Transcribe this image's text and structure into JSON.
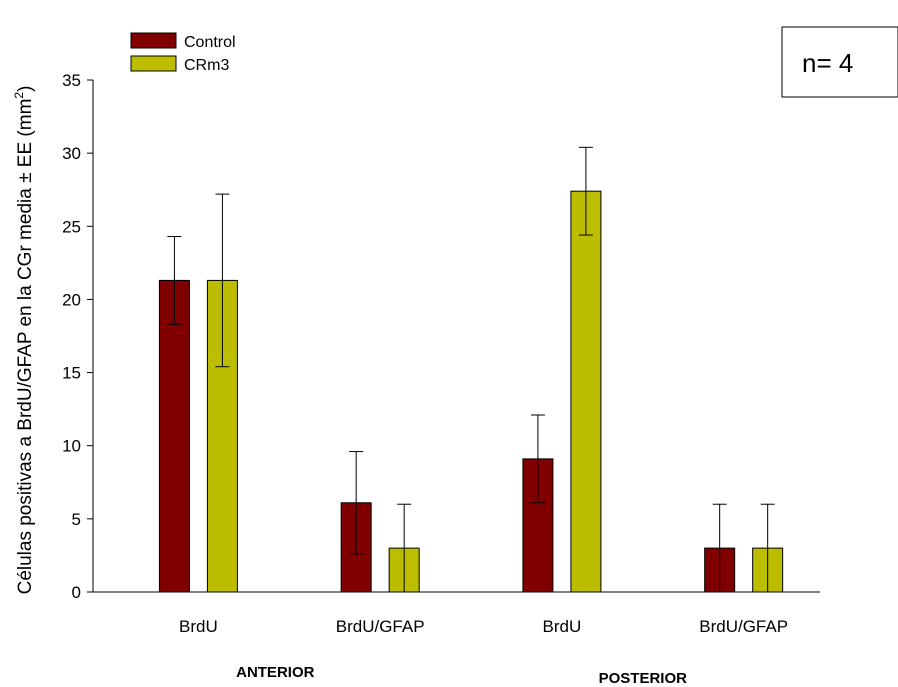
{
  "chart_data": {
    "type": "bar",
    "title": "",
    "xlabel": "",
    "ylabel": "Células positivas a BrdU/GFAP en la CGr media ± EE (mm",
    "ylabel_sup": "2",
    "ylabel_close": ")",
    "ylim": [
      0,
      35
    ],
    "yticks": [
      0,
      5,
      10,
      15,
      20,
      25,
      30,
      35
    ],
    "grid": false,
    "legend_position": "top-left",
    "categories": [
      "BrdU",
      "BrdU/GFAP",
      "BrdU",
      "BrdU/GFAP"
    ],
    "groups": [
      {
        "label": "ANTERIOR",
        "categories": [
          0,
          1
        ]
      },
      {
        "label": "POSTERIOR",
        "categories": [
          2,
          3
        ]
      }
    ],
    "series": [
      {
        "name": "Control",
        "color": "#800000",
        "values": [
          21.3,
          6.1,
          9.1,
          3.0
        ],
        "errors": [
          3.0,
          3.5,
          3.0,
          3.0
        ]
      },
      {
        "name": "CRm3",
        "color": "#BDBD00",
        "values": [
          21.3,
          3.0,
          27.4,
          3.0
        ],
        "errors": [
          5.9,
          3.0,
          3.0,
          3.0
        ]
      }
    ],
    "annotation": "n= 4"
  }
}
